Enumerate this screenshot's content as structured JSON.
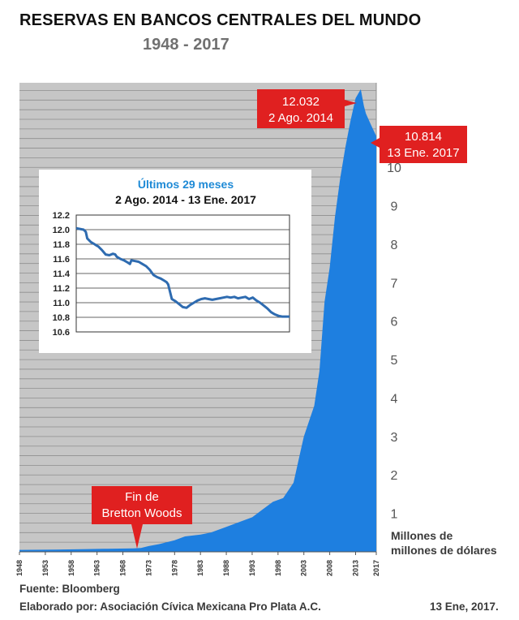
{
  "title": "RESERVAS EN BANCOS CENTRALES DEL MUNDO",
  "subtitle": "1948 - 2017",
  "source": "Fuente: Bloomberg",
  "credit": "Elaborado por: Asociación Cívica Mexicana Pro Plata A.C.",
  "date": "13 Ene, 2017.",
  "chart_data": [
    {
      "type": "area",
      "color": "#1e7fe0",
      "grid": true,
      "ylabel": "Millones de millones de dólares",
      "yaxis_position": "right",
      "ylim": [
        0,
        12.2
      ],
      "yticks": [
        "1",
        "2",
        "3",
        "4",
        "5",
        "6",
        "7",
        "8",
        "9",
        "10"
      ],
      "xlim": [
        1948,
        2017
      ],
      "xticks": [
        "1948",
        "1953",
        "1958",
        "1963",
        "1968",
        "1973",
        "1978",
        "1983",
        "1988",
        "1993",
        "1998",
        "2003",
        "2008",
        "2013",
        "2017"
      ],
      "x": [
        1948,
        1955,
        1960,
        1965,
        1970,
        1971.5,
        1973,
        1975,
        1978,
        1980,
        1983,
        1985,
        1988,
        1990,
        1993,
        1995,
        1997,
        1999,
        2000,
        2001,
        2002,
        2003,
        2004,
        2005,
        2006,
        2007,
        2008,
        2009,
        2010,
        2011,
        2012,
        2013,
        2014,
        2014.6,
        2015,
        2016,
        2017
      ],
      "y": [
        0.05,
        0.06,
        0.07,
        0.08,
        0.09,
        0.1,
        0.15,
        0.2,
        0.3,
        0.4,
        0.45,
        0.5,
        0.65,
        0.75,
        0.9,
        1.1,
        1.3,
        1.4,
        1.6,
        1.8,
        2.4,
        3.0,
        3.4,
        3.8,
        4.7,
        6.5,
        7.4,
        8.7,
        9.7,
        10.5,
        11.2,
        11.8,
        12.032,
        11.6,
        11.4,
        11.1,
        10.814
      ],
      "annotations": [
        {
          "id": "peak",
          "line1": "12.032",
          "line2": "2 Ago. 2014"
        },
        {
          "id": "last",
          "line1": "10.814",
          "line2": "13 Ene. 2017"
        },
        {
          "id": "bretton",
          "line1": "Fin de",
          "line2": "Bretton Woods"
        }
      ]
    },
    {
      "type": "line",
      "title": "Últimos 29 meses",
      "subtitle": "2 Ago. 2014 - 13 Ene. 2017",
      "color": "#2e6bb0",
      "grid": true,
      "xlim": [
        0,
        29
      ],
      "ylim": [
        10.6,
        12.2
      ],
      "yticks": [
        "10.6",
        "10.8",
        "11.0",
        "11.2",
        "11.4",
        "11.6",
        "11.8",
        "12.0",
        "12.2"
      ],
      "x": [
        0,
        0.5,
        1,
        1.3,
        1.5,
        2,
        2.5,
        2.8,
        3,
        3.5,
        4,
        4.5,
        5,
        5.3,
        5.5,
        6,
        6.5,
        7,
        7.3,
        7.5,
        8,
        8.5,
        9,
        9.5,
        10,
        10.5,
        11,
        11.5,
        12,
        12.3,
        12.5,
        13,
        13.5,
        14,
        14.5,
        15,
        15.5,
        16,
        16.5,
        17,
        17.5,
        18,
        18.5,
        19,
        19.5,
        20,
        20.5,
        21,
        21.5,
        22,
        22.5,
        23,
        23.5,
        24,
        24.5,
        25,
        25.5,
        26,
        26.5,
        27,
        27.5,
        28,
        28.5,
        29
      ],
      "y": [
        12.02,
        12.01,
        12.0,
        11.97,
        11.88,
        11.83,
        11.8,
        11.78,
        11.77,
        11.72,
        11.66,
        11.65,
        11.67,
        11.66,
        11.63,
        11.6,
        11.58,
        11.55,
        11.53,
        11.58,
        11.57,
        11.56,
        11.53,
        11.5,
        11.45,
        11.38,
        11.35,
        11.33,
        11.3,
        11.28,
        11.25,
        11.05,
        11.02,
        10.98,
        10.94,
        10.93,
        10.97,
        11.0,
        11.03,
        11.05,
        11.06,
        11.05,
        11.04,
        11.05,
        11.06,
        11.07,
        11.08,
        11.07,
        11.08,
        11.06,
        11.07,
        11.08,
        11.05,
        11.07,
        11.03,
        11.0,
        10.96,
        10.92,
        10.87,
        10.84,
        10.82,
        10.81,
        10.81,
        10.81
      ]
    }
  ]
}
